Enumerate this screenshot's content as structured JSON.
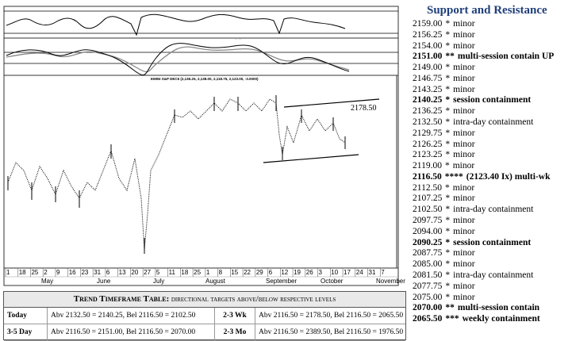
{
  "chart_data": {
    "type": "ohlc",
    "title": "EMINI S&P DEC6 (2,136.25, 2,138.00, 2,118.75, 2,123.00, -3.0000)",
    "annotation": "2178.50",
    "day_labels": [
      "1",
      "18",
      "25",
      "2",
      "9",
      "16",
      "23",
      "31",
      "6",
      "13",
      "20",
      "27",
      "5",
      "11",
      "18",
      "25",
      "1",
      "8",
      "15",
      "22",
      "29",
      "6",
      "12",
      "19",
      "26",
      "3",
      "10",
      "17",
      "24",
      "31",
      "7"
    ],
    "month_labels": [
      "May",
      "June",
      "July",
      "August",
      "September",
      "October",
      "November"
    ]
  },
  "support_resistance": {
    "title": "Support and Resistance",
    "levels": [
      {
        "price": "2159.00",
        "stars": "*",
        "note": "minor",
        "bold": false
      },
      {
        "price": "2156.25",
        "stars": "*",
        "note": "minor",
        "bold": false
      },
      {
        "price": "2154.00",
        "stars": "*",
        "note": "minor",
        "bold": false
      },
      {
        "price": "2151.00",
        "stars": "**",
        "note": "multi-session contain UP",
        "bold": true
      },
      {
        "price": "2149.00",
        "stars": "*",
        "note": "minor",
        "bold": false
      },
      {
        "price": "2146.75",
        "stars": "*",
        "note": "minor",
        "bold": false
      },
      {
        "price": "2143.25",
        "stars": "*",
        "note": "minor",
        "bold": false
      },
      {
        "price": "2140.25",
        "stars": "*",
        "note": "session containment",
        "bold": true
      },
      {
        "price": "2136.25",
        "stars": "*",
        "note": "minor",
        "bold": false
      },
      {
        "price": "2132.50",
        "stars": "*",
        "note": "intra-day containment",
        "bold": false
      },
      {
        "price": "2129.75",
        "stars": "*",
        "note": "minor",
        "bold": false
      },
      {
        "price": "2126.25",
        "stars": "*",
        "note": "minor",
        "bold": false
      },
      {
        "price": "2123.25",
        "stars": "*",
        "note": "minor",
        "bold": false
      },
      {
        "price": "2119.00",
        "stars": "*",
        "note": "minor",
        "bold": false
      },
      {
        "price": "2116.50",
        "stars": "****",
        "note": "(2123.40 Ix) multi-wk",
        "bold": true
      },
      {
        "price": "2112.50",
        "stars": "*",
        "note": "minor",
        "bold": false
      },
      {
        "price": "2107.25",
        "stars": "*",
        "note": "minor",
        "bold": false
      },
      {
        "price": "2102.50",
        "stars": "*",
        "note": "intra-day containment",
        "bold": false
      },
      {
        "price": "2097.75",
        "stars": "*",
        "note": "minor",
        "bold": false
      },
      {
        "price": "2094.00",
        "stars": "*",
        "note": "minor",
        "bold": false
      },
      {
        "price": "2090.25",
        "stars": "*",
        "note": "session containment",
        "bold": true
      },
      {
        "price": "2087.75",
        "stars": "*",
        "note": "minor",
        "bold": false
      },
      {
        "price": "2085.00",
        "stars": "*",
        "note": "minor",
        "bold": false
      },
      {
        "price": "2081.50",
        "stars": "*",
        "note": "intra-day containment",
        "bold": false
      },
      {
        "price": "2077.75",
        "stars": "*",
        "note": "minor",
        "bold": false
      },
      {
        "price": "2075.00",
        "stars": "*",
        "note": "minor",
        "bold": false
      },
      {
        "price": "2070.00",
        "stars": "**",
        "note": "multi-session contain",
        "bold": true
      },
      {
        "price": "2065.50",
        "stars": "***",
        "note": "weekly containment",
        "bold": true
      }
    ]
  },
  "trend_table": {
    "title": "Trend Timeframe Table:",
    "subtitle": "directional targets above/below respective levels",
    "rows": [
      [
        "Today",
        "Abv 2132.50 = 2140.25, Bel 2116.50 = 2102.50",
        "2-3 Wk",
        "Abv 2116.50 = 2178.50, Bel 2116.50 = 2065.50"
      ],
      [
        "3-5 Day",
        "Abv 2116.50 = 2151.00, Bel 2116.50 = 2070.00",
        "2-3 Mo",
        "Abv 2116.50 = 2389.50, Bel 2116.50 = 1976.50"
      ]
    ]
  }
}
